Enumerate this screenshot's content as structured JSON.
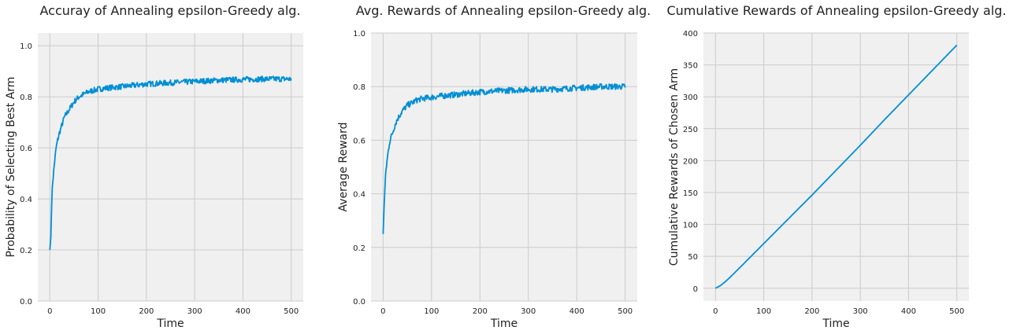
{
  "colors": {
    "line": "#008fd5",
    "plot_background": "#f0f0f0",
    "grid": "#cbcbcb"
  },
  "chart_data": [
    {
      "type": "line",
      "title": "Accuray of Annealing epsilon-Greedy alg.",
      "xlabel": "Time",
      "ylabel": "Probability of Selecting Best Arm",
      "xlim": [
        -25,
        525
      ],
      "ylim": [
        0.0,
        1.05
      ],
      "xticks": [
        0,
        100,
        200,
        300,
        400,
        500
      ],
      "yticks": [
        0.0,
        0.2,
        0.4,
        0.6,
        0.8,
        1.0
      ],
      "ytick_labels": [
        "0.0",
        "0.2",
        "0.4",
        "0.6",
        "0.8",
        "1.0"
      ],
      "grid": true,
      "x": [
        0,
        2,
        4,
        6,
        8,
        10,
        13,
        16,
        20,
        25,
        30,
        40,
        50,
        60,
        70,
        80,
        100,
        120,
        150,
        200,
        250,
        300,
        350,
        400,
        450,
        500
      ],
      "y": [
        0.2,
        0.25,
        0.4,
        0.47,
        0.51,
        0.55,
        0.6,
        0.63,
        0.66,
        0.69,
        0.72,
        0.75,
        0.78,
        0.8,
        0.81,
        0.82,
        0.83,
        0.835,
        0.84,
        0.85,
        0.855,
        0.86,
        0.865,
        0.868,
        0.87,
        0.87
      ]
    },
    {
      "type": "line",
      "title": "Avg. Rewards of Annealing epsilon-Greedy alg.",
      "xlabel": "Time",
      "ylabel": "Average Reward",
      "xlim": [
        -25,
        525
      ],
      "ylim": [
        0.0,
        1.0
      ],
      "xticks": [
        0,
        100,
        200,
        300,
        400,
        500
      ],
      "yticks": [
        0.0,
        0.2,
        0.4,
        0.6,
        0.8,
        1.0
      ],
      "ytick_labels": [
        "0.0",
        "0.2",
        "0.4",
        "0.6",
        "0.8",
        "1.0"
      ],
      "grid": true,
      "x": [
        0,
        2,
        4,
        6,
        8,
        10,
        13,
        16,
        20,
        25,
        30,
        40,
        50,
        60,
        70,
        80,
        100,
        120,
        150,
        200,
        250,
        300,
        350,
        400,
        450,
        500
      ],
      "y": [
        0.25,
        0.35,
        0.43,
        0.49,
        0.52,
        0.55,
        0.59,
        0.61,
        0.63,
        0.66,
        0.68,
        0.71,
        0.73,
        0.74,
        0.75,
        0.755,
        0.76,
        0.765,
        0.77,
        0.78,
        0.785,
        0.79,
        0.79,
        0.795,
        0.8,
        0.8
      ]
    },
    {
      "type": "line",
      "title": "Cumulative Rewards of Annealing epsilon-Greedy alg.",
      "xlabel": "Time",
      "ylabel": "Cumulative Rewards of Chosen Arm",
      "xlim": [
        -25,
        525
      ],
      "ylim": [
        -20,
        400
      ],
      "xticks": [
        0,
        100,
        200,
        300,
        400,
        500
      ],
      "yticks": [
        0,
        50,
        100,
        150,
        200,
        250,
        300,
        350,
        400
      ],
      "ytick_labels": [
        "0",
        "50",
        "100",
        "150",
        "200",
        "250",
        "300",
        "350",
        "400"
      ],
      "grid": true,
      "x": [
        0,
        10,
        20,
        30,
        50,
        75,
        100,
        150,
        200,
        250,
        300,
        350,
        400,
        450,
        500
      ],
      "y": [
        0,
        4,
        10,
        17,
        32,
        51,
        70,
        108,
        146,
        185,
        224,
        264,
        303,
        342,
        381
      ]
    }
  ]
}
